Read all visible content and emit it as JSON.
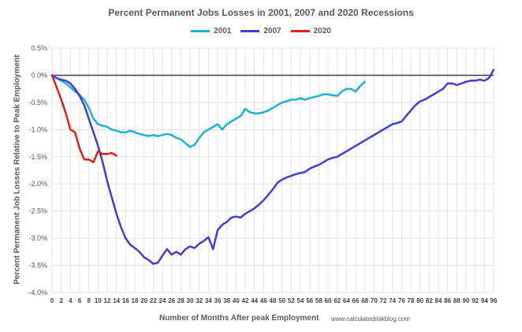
{
  "chart_data": {
    "type": "line",
    "title": "Percent Permanent Jobs Losses in 2001, 2007 and 2020 Recessions",
    "xlabel": "Number of Months After peak Employment",
    "ylabel": "Percent Permanent Job Losses Relative to Peak Employment",
    "source": "www.calculatedriskblog.com",
    "xlim": [
      0,
      96
    ],
    "ylim": [
      -4.0,
      0.5
    ],
    "yticks": [
      0.5,
      0.0,
      -0.5,
      -1.0,
      -1.5,
      -2.0,
      -2.5,
      -3.0,
      -3.5,
      -4.0
    ],
    "ytick_labels": [
      "0.5%",
      "0.0%",
      "-0.5%",
      "-1.0%",
      "-1.5%",
      "-2.0%",
      "-2.5%",
      "-3.0%",
      "-3.5%",
      "-4.0%"
    ],
    "xticks": [
      0,
      2,
      4,
      6,
      8,
      10,
      12,
      14,
      16,
      18,
      20,
      22,
      24,
      26,
      28,
      30,
      32,
      34,
      36,
      38,
      40,
      42,
      44,
      46,
      48,
      50,
      52,
      54,
      56,
      58,
      60,
      62,
      64,
      66,
      68,
      70,
      72,
      74,
      76,
      78,
      80,
      82,
      84,
      86,
      88,
      90,
      92,
      94,
      96
    ],
    "grid": true,
    "legend_position": "top-center",
    "series": [
      {
        "name": "2001",
        "color": "#1fb0d4",
        "x": [
          0,
          1,
          2,
          3,
          4,
          5,
          6,
          7,
          8,
          9,
          10,
          11,
          12,
          13,
          14,
          15,
          16,
          17,
          18,
          19,
          20,
          21,
          22,
          23,
          24,
          25,
          26,
          27,
          28,
          29,
          30,
          31,
          32,
          33,
          34,
          35,
          36,
          37,
          38,
          39,
          40,
          41,
          42,
          43,
          44,
          45,
          46,
          47,
          48,
          49,
          50,
          51,
          52,
          53,
          54,
          55,
          56,
          57,
          58,
          59,
          60,
          61,
          62,
          63,
          64,
          65,
          66,
          67,
          68
        ],
        "y": [
          0,
          -0.05,
          -0.1,
          -0.15,
          -0.22,
          -0.3,
          -0.36,
          -0.45,
          -0.6,
          -0.8,
          -0.9,
          -0.93,
          -0.95,
          -1.0,
          -1.02,
          -1.05,
          -1.05,
          -1.02,
          -1.05,
          -1.08,
          -1.1,
          -1.12,
          -1.1,
          -1.12,
          -1.1,
          -1.08,
          -1.1,
          -1.15,
          -1.18,
          -1.25,
          -1.32,
          -1.28,
          -1.15,
          -1.05,
          -1.0,
          -0.95,
          -0.9,
          -1.0,
          -0.9,
          -0.85,
          -0.8,
          -0.75,
          -0.62,
          -0.68,
          -0.7,
          -0.7,
          -0.68,
          -0.65,
          -0.6,
          -0.55,
          -0.5,
          -0.48,
          -0.45,
          -0.45,
          -0.42,
          -0.45,
          -0.42,
          -0.4,
          -0.38,
          -0.35,
          -0.35,
          -0.37,
          -0.38,
          -0.3,
          -0.25,
          -0.25,
          -0.3,
          -0.2,
          -0.12
        ]
      },
      {
        "name": "2007",
        "color": "#3f3fd6",
        "x": [
          0,
          1,
          2,
          3,
          4,
          5,
          6,
          7,
          8,
          9,
          10,
          11,
          12,
          13,
          14,
          15,
          16,
          17,
          18,
          19,
          20,
          21,
          22,
          23,
          24,
          25,
          26,
          27,
          28,
          29,
          30,
          31,
          32,
          33,
          34,
          35,
          36,
          37,
          38,
          39,
          40,
          41,
          42,
          43,
          44,
          45,
          46,
          47,
          48,
          49,
          50,
          51,
          52,
          53,
          54,
          55,
          56,
          57,
          58,
          59,
          60,
          61,
          62,
          63,
          64,
          65,
          66,
          67,
          68,
          69,
          70,
          71,
          72,
          73,
          74,
          75,
          76,
          77,
          78,
          79,
          80,
          81,
          82,
          83,
          84,
          85,
          86,
          87,
          88,
          89,
          90,
          91,
          92,
          93,
          94,
          95,
          96
        ],
        "y": [
          0,
          -0.05,
          -0.08,
          -0.1,
          -0.15,
          -0.25,
          -0.38,
          -0.55,
          -0.8,
          -1.05,
          -1.3,
          -1.6,
          -1.95,
          -2.25,
          -2.55,
          -2.8,
          -3.0,
          -3.12,
          -3.18,
          -3.25,
          -3.35,
          -3.4,
          -3.47,
          -3.45,
          -3.32,
          -3.2,
          -3.3,
          -3.25,
          -3.3,
          -3.2,
          -3.15,
          -3.18,
          -3.1,
          -3.05,
          -2.98,
          -3.2,
          -2.85,
          -2.75,
          -2.7,
          -2.62,
          -2.6,
          -2.62,
          -2.55,
          -2.5,
          -2.45,
          -2.38,
          -2.3,
          -2.2,
          -2.1,
          -1.98,
          -1.92,
          -1.88,
          -1.85,
          -1.82,
          -1.8,
          -1.78,
          -1.72,
          -1.68,
          -1.65,
          -1.6,
          -1.55,
          -1.52,
          -1.5,
          -1.45,
          -1.4,
          -1.35,
          -1.3,
          -1.25,
          -1.2,
          -1.15,
          -1.1,
          -1.05,
          -1.0,
          -0.95,
          -0.9,
          -0.88,
          -0.85,
          -0.75,
          -0.65,
          -0.55,
          -0.48,
          -0.45,
          -0.4,
          -0.35,
          -0.3,
          -0.25,
          -0.15,
          -0.15,
          -0.18,
          -0.15,
          -0.12,
          -0.1,
          -0.1,
          -0.08,
          -0.1,
          -0.05,
          0.1
        ]
      },
      {
        "name": "2020",
        "color": "#e0201a",
        "x": [
          0,
          1,
          2,
          3,
          4,
          5,
          6,
          7,
          8,
          9,
          10,
          11,
          12,
          13,
          14
        ],
        "y": [
          0,
          -0.22,
          -0.45,
          -0.7,
          -1.0,
          -1.05,
          -1.35,
          -1.55,
          -1.55,
          -1.6,
          -1.4,
          -1.45,
          -1.45,
          -1.43,
          -1.48
        ]
      }
    ]
  }
}
